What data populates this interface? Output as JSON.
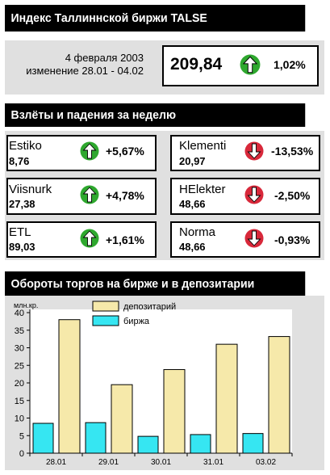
{
  "header": {
    "title": "Индекс Таллиннской биржи TALSE",
    "date_line1": "4 февраля 2003",
    "date_line2": "изменение 28.01 - 04.02",
    "index_value": "209,84",
    "index_change": "1,02%",
    "index_direction": "up"
  },
  "weekly": {
    "title": "Взлёты и падения за неделю",
    "stocks": [
      {
        "name": "Estiko",
        "value": "8,76",
        "change": "+5,67%",
        "direction": "up"
      },
      {
        "name": "Klementi",
        "value": "20,97",
        "change": "-13,53%",
        "direction": "down"
      },
      {
        "name": "Viisnurk",
        "value": "27,38",
        "change": "+4,78%",
        "direction": "up"
      },
      {
        "name": "HElekter",
        "value": "48,66",
        "change": "-2,50%",
        "direction": "down"
      },
      {
        "name": "ETL",
        "value": "89,03",
        "change": "+1,61%",
        "direction": "up"
      },
      {
        "name": "Norma",
        "value": "48,66",
        "change": "-0,93%",
        "direction": "down"
      }
    ]
  },
  "turnover": {
    "title": "Обороты торгов на бирже и в депозитарии"
  },
  "colors": {
    "up_green": "#2ea82e",
    "down_red": "#d8283a",
    "birzha": "#36e6f2",
    "depozitariy": "#f6e9aa",
    "panel_gray": "#e0e0e0"
  },
  "chart_data": {
    "type": "bar",
    "ylabel": "млн.кр.",
    "ylim": [
      0,
      40
    ],
    "yticks": [
      0,
      5,
      10,
      15,
      20,
      25,
      30,
      35,
      40
    ],
    "categories": [
      "28.01",
      "29.01",
      "30.01",
      "31.01",
      "03.02"
    ],
    "series": [
      {
        "name": "биржа",
        "values": [
          8.5,
          8.7,
          4.8,
          5.3,
          5.6
        ]
      },
      {
        "name": "депозитарий",
        "values": [
          38.0,
          19.5,
          23.8,
          31.0,
          33.2
        ]
      }
    ],
    "legend": [
      "депозитарий",
      "биржа"
    ],
    "legend_placement": "top",
    "grid": false
  }
}
